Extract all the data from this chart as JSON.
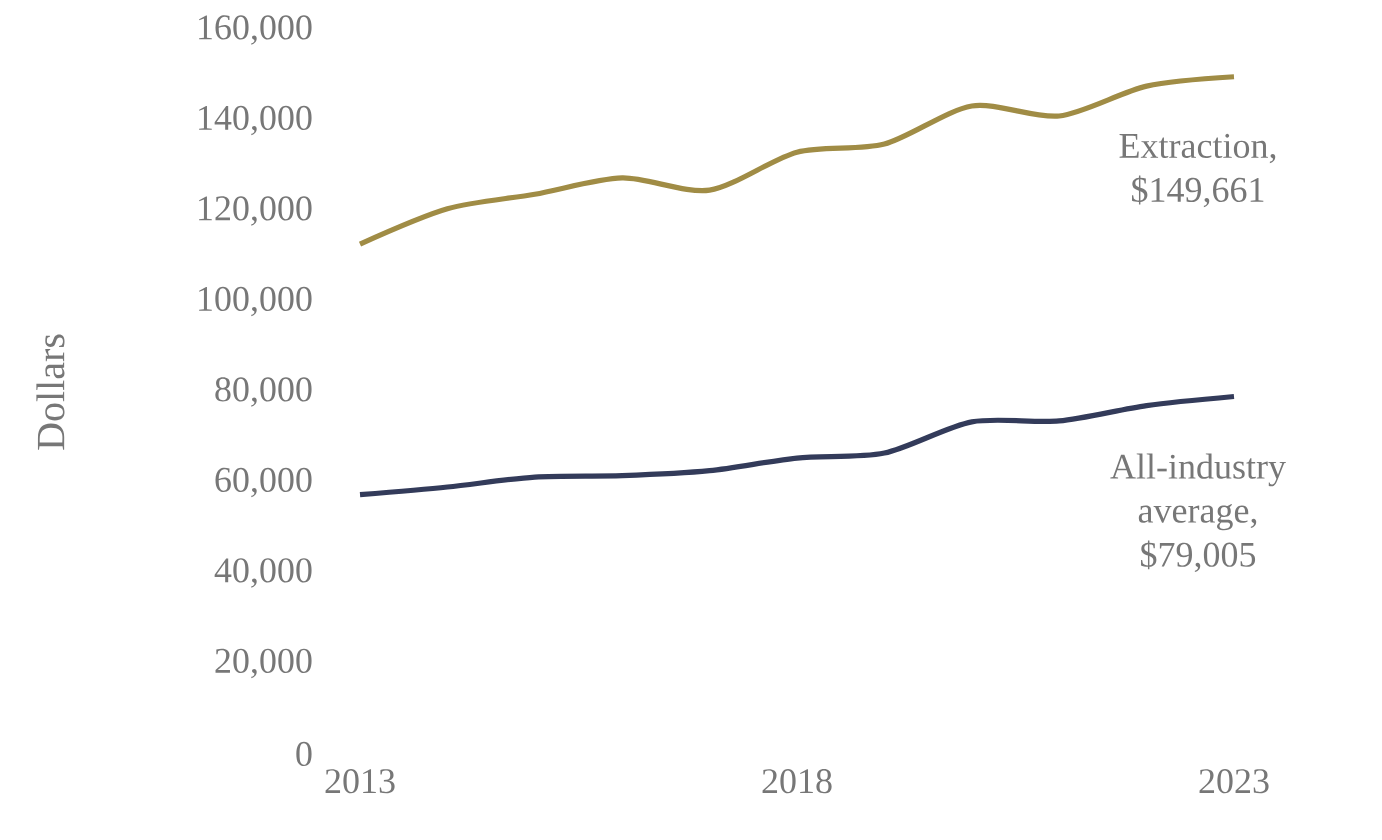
{
  "chart_data": {
    "type": "line",
    "ylabel": "Dollars",
    "x": [
      2013,
      2014,
      2015,
      2016,
      2017,
      2018,
      2019,
      2020,
      2021,
      2022,
      2023
    ],
    "xlim": [
      2013,
      2023
    ],
    "xticks": [
      2013,
      2018,
      2023
    ],
    "ylim": [
      0,
      160000
    ],
    "yticks": [
      0,
      {
        "value": 20000,
        "label": "20,000"
      },
      {
        "value": 40000,
        "label": "40,000"
      },
      {
        "value": 60000,
        "label": "60,000"
      },
      {
        "value": 80000,
        "label": "80,000"
      },
      {
        "value": 100000,
        "label": "100,000"
      },
      {
        "value": 120000,
        "label": "120,000"
      },
      {
        "value": 140000,
        "label": "140,000"
      },
      {
        "value": 160000,
        "label": "160,000"
      }
    ],
    "legend": false,
    "marker": "none",
    "line_style": "solid",
    "series": [
      {
        "name": "Extraction, $149,661",
        "color": "#a08c45",
        "values": [
          112700,
          120500,
          123700,
          127300,
          124600,
          133000,
          134800,
          143200,
          141000,
          147600,
          149661
        ]
      },
      {
        "name": "All-industry average, $79,005",
        "color": "#333b5a",
        "values": [
          57300,
          59000,
          61200,
          61500,
          62600,
          65400,
          66500,
          73400,
          73600,
          77000,
          79005
        ]
      }
    ]
  }
}
